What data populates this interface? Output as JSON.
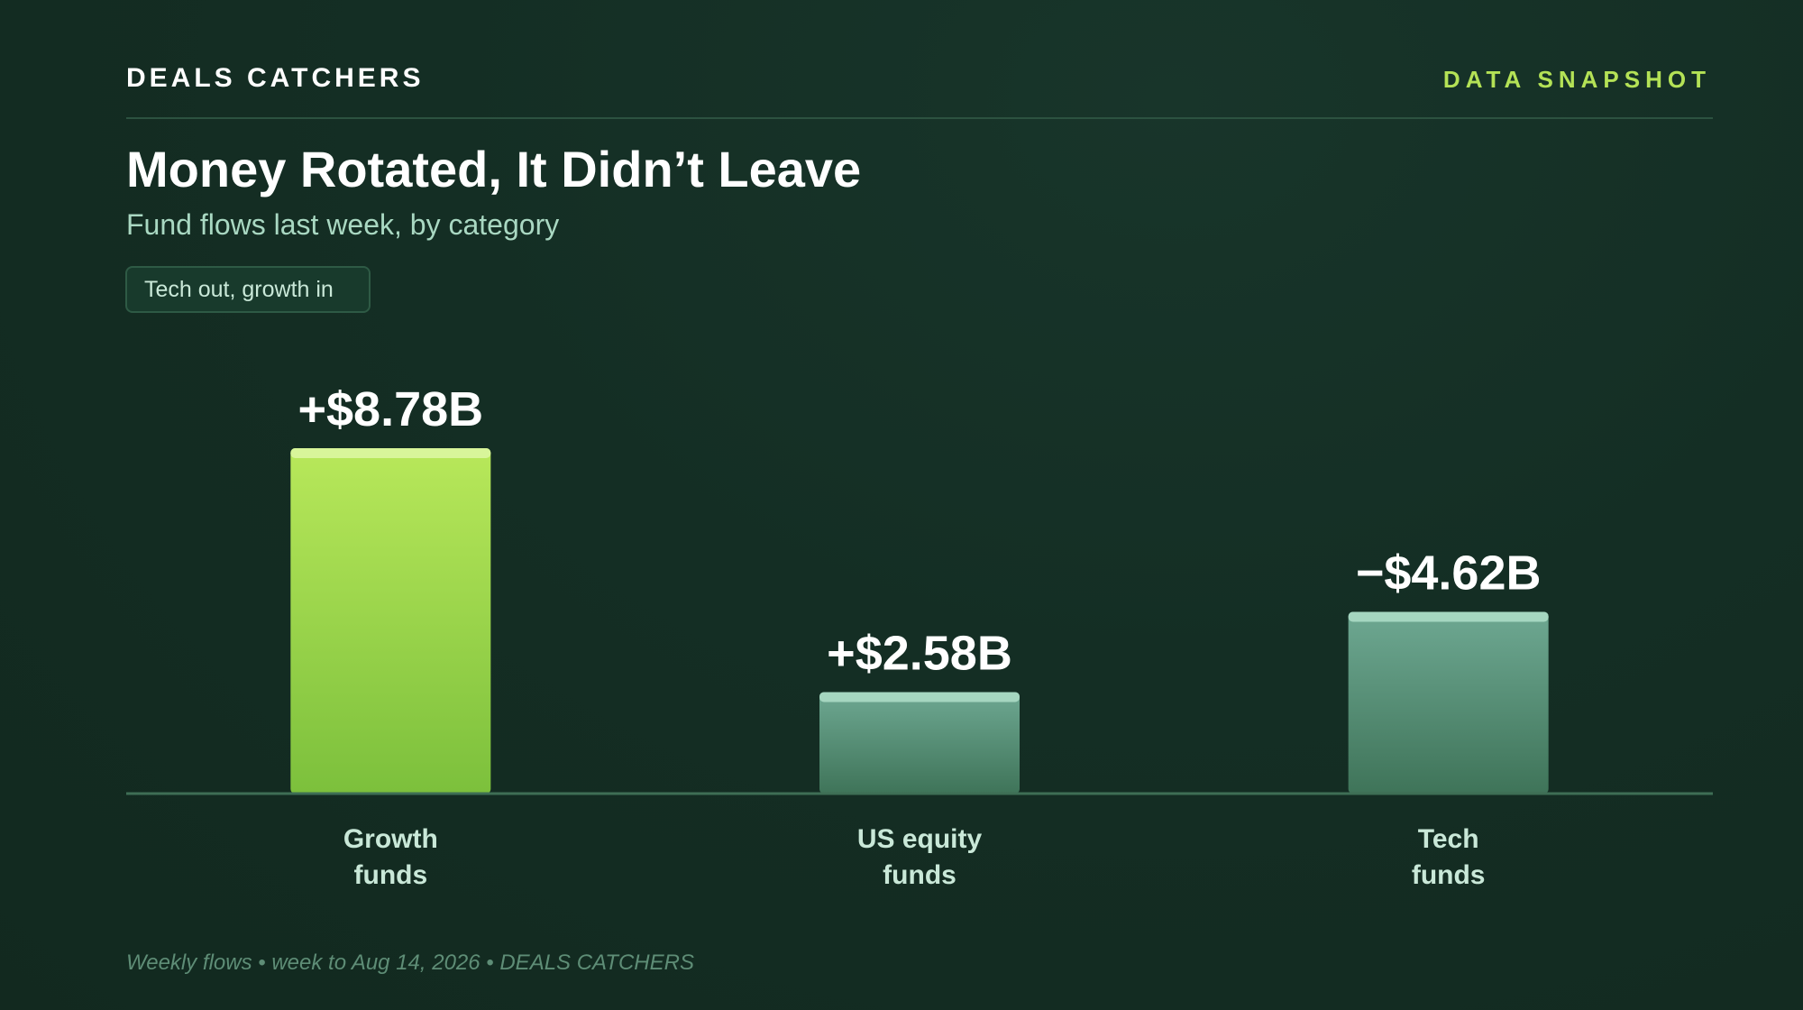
{
  "header": {
    "brand": "DEALS CATCHERS",
    "snapshot_label": "DATA SNAPSHOT"
  },
  "title": "Money Rotated, It Didn’t Leave",
  "subtitle": "Fund flows last week, by category",
  "tag": "Tech out, growth in",
  "footer": "Weekly flows • week to Aug 14, 2026 • DEALS CATCHERS",
  "colors": {
    "accent": "#b4e256",
    "highlight_bar_top": "#b8e85a",
    "highlight_bar_bottom": "#7cc03c",
    "muted_bar_top": "#6ea892",
    "muted_bar_bottom": "#3f7459",
    "muted_bar_cap": "#a5d6c0",
    "highlight_bar_cap": "#d8f59a",
    "baseline": "#3e6e55",
    "value_label": "#ffffff",
    "category_label": "#c9e8d8"
  },
  "chart_data": {
    "type": "bar",
    "categories": [
      "Growth funds",
      "US equity funds",
      "Tech funds"
    ],
    "category_lines": [
      [
        "Growth",
        "funds"
      ],
      [
        "US equity",
        "funds"
      ],
      [
        "Tech",
        "funds"
      ]
    ],
    "values": [
      8.78,
      2.58,
      -4.62
    ],
    "value_labels": [
      "+$8.78B",
      "+$2.58B",
      "−$4.62B"
    ],
    "highlight": [
      true,
      false,
      false
    ],
    "unit": "$B",
    "bar_height_basis": "magnitude",
    "title": "Money Rotated, It Didn’t Leave",
    "subtitle": "Fund flows last week, by category",
    "xlabel": "",
    "ylabel": "",
    "grid": false,
    "legend": "none"
  }
}
